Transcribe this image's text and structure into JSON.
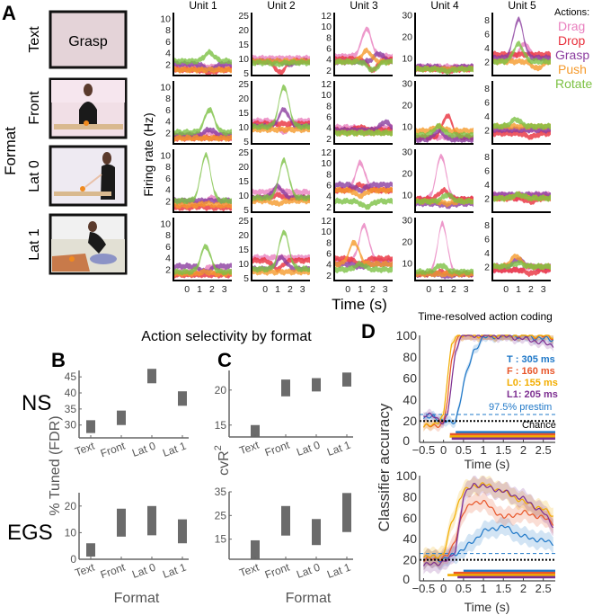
{
  "figure": {
    "panel_labels": {
      "A": "A",
      "B": "B",
      "C": "C",
      "D": "D"
    },
    "bc_title": "Action selectivity by format",
    "d_title": "Time-resolved action coding"
  },
  "panel_a": {
    "format_label": "Format",
    "row_labels": [
      "Text",
      "Front",
      "Lat 0",
      "Lat 1"
    ],
    "stimulus_text": "Grasp",
    "ylabel": "Firing rate (Hz)",
    "xlabel": "Time (s)",
    "legend_title": "Actions:",
    "actions": [
      "Drag",
      "Drop",
      "Grasp",
      "Push",
      "Rotate"
    ],
    "action_colors": {
      "Drag": "#e97fbe",
      "Drop": "#e8303c",
      "Grasp": "#8b3d9f",
      "Push": "#f59a2b",
      "Rotate": "#7cc143"
    }
  },
  "panel_bc": {
    "row_labels": [
      "NS",
      "EGS"
    ],
    "b_ylabel": "% Tuned (FDR)",
    "c_ylabel": "cvR",
    "c_ylabel_sup": "2",
    "xlabel": "Format"
  },
  "panel_d": {
    "ylabel": "Classifier accuracy",
    "xlabel": "Time (s)",
    "prestim_label": "97.5% prestim",
    "chance_label": "Chance",
    "latency_labels": [
      "T : 305 ms",
      "F : 160 ms",
      "L0: 155 ms",
      "L1: 205 ms"
    ],
    "colors": {
      "T": "#1f78c8",
      "F": "#e8562a",
      "L0": "#f2ad00",
      "L1": "#7d2f91"
    }
  },
  "chart_data": [
    {
      "panel": "A",
      "type": "area",
      "note_traces": "each trace: [baseline Hz, peak Hz, peak time s]",
      "xlim": [
        -1.1,
        3.6
      ],
      "xticks": [
        0,
        1,
        2,
        3
      ],
      "units": [
        {
          "title": "Unit 1",
          "ylim": [
            0,
            11
          ],
          "yticks": [
            2,
            4,
            6,
            8,
            10
          ],
          "rows": [
            {
              "Drag": [
                1.5,
                1.5,
                1
              ],
              "Drop": [
                1,
                0.5,
                1.8
              ],
              "Grasp": [
                2,
                1,
                1.8
              ],
              "Push": [
                1,
                1,
                1
              ],
              "Rotate": [
                2.5,
                4,
                1.8
              ]
            },
            {
              "Drag": [
                1.5,
                2,
                1.8
              ],
              "Drop": [
                1,
                1,
                1
              ],
              "Grasp": [
                1.5,
                2.5,
                1.8
              ],
              "Push": [
                1,
                1,
                1
              ],
              "Rotate": [
                2,
                6,
                1.8
              ]
            },
            {
              "Drag": [
                1.5,
                2.5,
                2
              ],
              "Drop": [
                0.8,
                1,
                1
              ],
              "Grasp": [
                2,
                2,
                1
              ],
              "Push": [
                1.2,
                1.5,
                1.5
              ],
              "Rotate": [
                2,
                10,
                1.5
              ]
            },
            {
              "Drag": [
                1.5,
                2.5,
                2
              ],
              "Drop": [
                1,
                1,
                1
              ],
              "Grasp": [
                2.5,
                1.5,
                1.5
              ],
              "Push": [
                1.2,
                1.5,
                1.5
              ],
              "Rotate": [
                1.5,
                6,
                1.5
              ]
            }
          ]
        },
        {
          "title": "Unit 2",
          "ylim": [
            4,
            26
          ],
          "yticks": [
            5,
            10,
            15,
            20,
            25
          ],
          "rows": [
            {
              "Drag": [
                10,
                10,
                1
              ],
              "Drop": [
                9,
                5,
                1.2
              ],
              "Grasp": [
                9,
                8,
                2
              ],
              "Push": [
                9,
                9,
                1
              ],
              "Rotate": [
                8.5,
                8,
                1
              ]
            },
            {
              "Drag": [
                12,
                8,
                1.5
              ],
              "Drop": [
                11,
                11,
                1
              ],
              "Grasp": [
                10,
                16,
                1.5
              ],
              "Push": [
                9,
                9,
                1
              ],
              "Rotate": [
                10,
                24,
                1.5
              ]
            },
            {
              "Drag": [
                11,
                12,
                1
              ],
              "Drop": [
                9,
                10,
                1
              ],
              "Grasp": [
                9,
                13,
                1
              ],
              "Push": [
                8,
                7,
                1
              ],
              "Rotate": [
                9,
                22,
                1.5
              ]
            },
            {
              "Drag": [
                12,
                12,
                1.5
              ],
              "Drop": [
                11,
                8,
                1
              ],
              "Grasp": [
                8,
                12,
                1.3
              ],
              "Push": [
                7,
                7,
                1
              ],
              "Rotate": [
                8,
                21,
                1.5
              ]
            }
          ]
        },
        {
          "title": "Unit 3",
          "ylim": [
            1,
            12.5
          ],
          "yticks": [
            2,
            4,
            6,
            8,
            10,
            12
          ],
          "rows": [
            {
              "Drag": [
                4.5,
                9.5,
                1.5
              ],
              "Drop": [
                4,
                2,
                2
              ],
              "Grasp": [
                3.5,
                5,
                2.5
              ],
              "Push": [
                3.5,
                5.5,
                1.5
              ],
              "Rotate": [
                3.5,
                2,
                2
              ]
            },
            {
              "Drag": [
                4,
                3,
                1.5
              ],
              "Drop": [
                3.5,
                4,
                1
              ],
              "Grasp": [
                3.5,
                5,
                3
              ],
              "Push": [
                3,
                3,
                1
              ],
              "Rotate": [
                3,
                3,
                1
              ]
            },
            {
              "Drag": [
                5,
                10,
                1
              ],
              "Drop": [
                5,
                6,
                1
              ],
              "Grasp": [
                6,
                5,
                1
              ],
              "Push": [
                5,
                4,
                1
              ],
              "Rotate": [
                3,
                2,
                1.5
              ]
            },
            {
              "Drag": [
                4.5,
                11,
                1.3
              ],
              "Drop": [
                5,
                4,
                1
              ],
              "Grasp": [
                4,
                3.5,
                1
              ],
              "Push": [
                4,
                8,
                0.5
              ],
              "Rotate": [
                3,
                4,
                1
              ]
            }
          ]
        },
        {
          "title": "Unit 4",
          "ylim": [
            2,
            31
          ],
          "yticks": [
            10,
            20,
            30
          ],
          "rows": [
            {
              "Drag": [
                6,
                6,
                1
              ],
              "Drop": [
                5,
                4,
                1.5
              ],
              "Grasp": [
                6,
                5,
                1.5
              ],
              "Push": [
                5,
                5,
                1
              ],
              "Rotate": [
                5,
                4,
                1.5
              ]
            },
            {
              "Drag": [
                5,
                5,
                1
              ],
              "Drop": [
                5,
                15,
                1.5
              ],
              "Grasp": [
                4,
                8,
                0.8
              ],
              "Push": [
                8,
                10,
                0.8
              ],
              "Rotate": [
                6,
                10,
                0.8
              ]
            },
            {
              "Drag": [
                8,
                28,
                1
              ],
              "Drop": [
                8,
                12,
                1.2
              ],
              "Grasp": [
                6,
                5,
                1.5
              ],
              "Push": [
                7,
                6,
                1.5
              ],
              "Rotate": [
                7,
                10,
                1.5
              ]
            },
            {
              "Drag": [
                5,
                28,
                1.1
              ],
              "Drop": [
                5,
                6,
                1
              ],
              "Grasp": [
                5,
                4,
                1.5
              ],
              "Push": [
                5,
                5,
                1
              ],
              "Rotate": [
                6,
                9,
                1
              ]
            }
          ]
        },
        {
          "title": "Unit 5",
          "ylim": [
            0,
            9
          ],
          "yticks": [
            2,
            4,
            6,
            8
          ],
          "rows": [
            {
              "Drag": [
                2.5,
                4.5,
                1.5
              ],
              "Drop": [
                3,
                3,
                1
              ],
              "Grasp": [
                2.5,
                8,
                1
              ],
              "Push": [
                2,
                1,
                2.5
              ],
              "Rotate": [
                2,
                4.5,
                1
              ]
            },
            {
              "Drag": [
                2,
                2,
                1
              ],
              "Drop": [
                1.5,
                1,
                2
              ],
              "Grasp": [
                2,
                2,
                1
              ],
              "Push": [
                2.5,
                2.5,
                1
              ],
              "Rotate": [
                2.5,
                3.5,
                0.8
              ]
            },
            {
              "Drag": [
                2.5,
                2,
                1
              ],
              "Drop": [
                2,
                1.5,
                2
              ],
              "Grasp": [
                2.5,
                2.5,
                1
              ],
              "Push": [
                2,
                2.5,
                1
              ],
              "Rotate": [
                2,
                2.5,
                1
              ]
            },
            {
              "Drag": [
                1.5,
                2,
                2
              ],
              "Drop": [
                1.5,
                1,
                2
              ],
              "Grasp": [
                2,
                3,
                1
              ],
              "Push": [
                2,
                3.5,
                0.8
              ],
              "Rotate": [
                2,
                2.5,
                1
              ]
            }
          ]
        }
      ]
    },
    {
      "panel": "B",
      "row": "NS",
      "type": "bar",
      "categories": [
        "Text",
        "Front",
        "Lat 0",
        "Lat 1"
      ],
      "ranges": [
        [
          27.5,
          31.5
        ],
        [
          30,
          34.5
        ],
        [
          43,
          47.5
        ],
        [
          36,
          40.5
        ]
      ],
      "ylim": [
        26,
        47
      ],
      "yticks": [
        30,
        35,
        40,
        45
      ]
    },
    {
      "panel": "B",
      "row": "EGS",
      "type": "bar",
      "categories": [
        "Text",
        "Front",
        "Lat 0",
        "Lat 1"
      ],
      "ranges": [
        [
          1,
          6
        ],
        [
          8.5,
          19
        ],
        [
          9,
          20
        ],
        [
          6,
          15
        ]
      ],
      "ylim": [
        0,
        25
      ],
      "yticks": [
        0,
        10,
        20
      ]
    },
    {
      "panel": "C",
      "row": "NS",
      "type": "bar",
      "categories": [
        "Text",
        "Front",
        "Lat 0",
        "Lat 1"
      ],
      "ranges": [
        [
          13.3,
          15
        ],
        [
          19.1,
          21.5
        ],
        [
          19.8,
          21.7
        ],
        [
          20.5,
          22.5
        ]
      ],
      "ylim": [
        13.3,
        22.8
      ],
      "yticks": [
        15,
        20
      ]
    },
    {
      "panel": "C",
      "row": "EGS",
      "type": "bar",
      "categories": [
        "Text",
        "Front",
        "Lat 0",
        "Lat 1"
      ],
      "ranges": [
        [
          6.5,
          14.5
        ],
        [
          16.5,
          29
        ],
        [
          12.5,
          23.5
        ],
        [
          18,
          34.5
        ]
      ],
      "ylim": [
        6.5,
        35
      ],
      "yticks": [
        15,
        25,
        35
      ]
    },
    {
      "panel": "D",
      "row": "NS",
      "type": "line",
      "xlim": [
        -0.6,
        2.8
      ],
      "ylim": [
        0,
        100
      ],
      "xticks": [
        -0.5,
        0,
        0.5,
        1,
        1.5,
        2,
        2.5
      ],
      "xtick_labels": [
        "−0.5",
        "0",
        "0.5",
        "1",
        "1.5",
        "2",
        "2.5"
      ],
      "yticks": [
        0,
        20,
        40,
        60,
        80,
        100
      ],
      "x": [
        -0.5,
        -0.25,
        0,
        0.1,
        0.2,
        0.3,
        0.4,
        0.5,
        0.75,
        1,
        1.5,
        2,
        2.5,
        2.75
      ],
      "series": [
        {
          "name": "T",
          "values": [
            22,
            24,
            20,
            19,
            18,
            20,
            35,
            55,
            85,
            98,
            100,
            99,
            97,
            96
          ],
          "onset": 0.305
        },
        {
          "name": "F",
          "values": [
            15,
            15,
            18,
            40,
            75,
            95,
            100,
            100,
            100,
            100,
            100,
            100,
            99,
            98
          ],
          "onset": 0.16
        },
        {
          "name": "L0",
          "values": [
            15,
            16,
            25,
            60,
            90,
            100,
            100,
            100,
            100,
            100,
            100,
            100,
            100,
            99
          ],
          "onset": 0.155
        },
        {
          "name": "L1",
          "values": [
            25,
            25,
            18,
            25,
            55,
            85,
            97,
            100,
            100,
            100,
            99,
            97,
            93,
            90
          ],
          "onset": 0.205
        }
      ],
      "prestim": 26,
      "chance": 20
    },
    {
      "panel": "D",
      "row": "EGS",
      "type": "line",
      "xlim": [
        -0.6,
        2.8
      ],
      "ylim": [
        0,
        100
      ],
      "xticks": [
        -0.5,
        0,
        0.5,
        1,
        1.5,
        2,
        2.5
      ],
      "xtick_labels": [
        "−0.5",
        "0",
        "0.5",
        "1",
        "1.5",
        "2",
        "2.5"
      ],
      "yticks": [
        0,
        20,
        40,
        60,
        80,
        100
      ],
      "x": [
        -0.5,
        -0.25,
        0,
        0.1,
        0.2,
        0.3,
        0.4,
        0.5,
        0.75,
        1,
        1.5,
        2,
        2.5,
        2.75
      ],
      "series": [
        {
          "name": "T",
          "values": [
            20,
            21,
            20,
            22,
            24,
            26,
            28,
            30,
            38,
            47,
            52,
            42,
            38,
            36
          ],
          "onset": 0.5
        },
        {
          "name": "F",
          "values": [
            20,
            21,
            22,
            24,
            30,
            40,
            55,
            65,
            75,
            75,
            60,
            65,
            60,
            55
          ],
          "onset": 0.25
        },
        {
          "name": "L0",
          "values": [
            22,
            23,
            25,
            40,
            55,
            65,
            78,
            85,
            90,
            92,
            85,
            75,
            68,
            62
          ],
          "onset": 0.1
        },
        {
          "name": "L1",
          "values": [
            15,
            16,
            18,
            20,
            22,
            30,
            55,
            80,
            92,
            90,
            85,
            78,
            65,
            52
          ],
          "onset": 0.35
        }
      ],
      "prestim": 26,
      "chance": 20
    }
  ]
}
